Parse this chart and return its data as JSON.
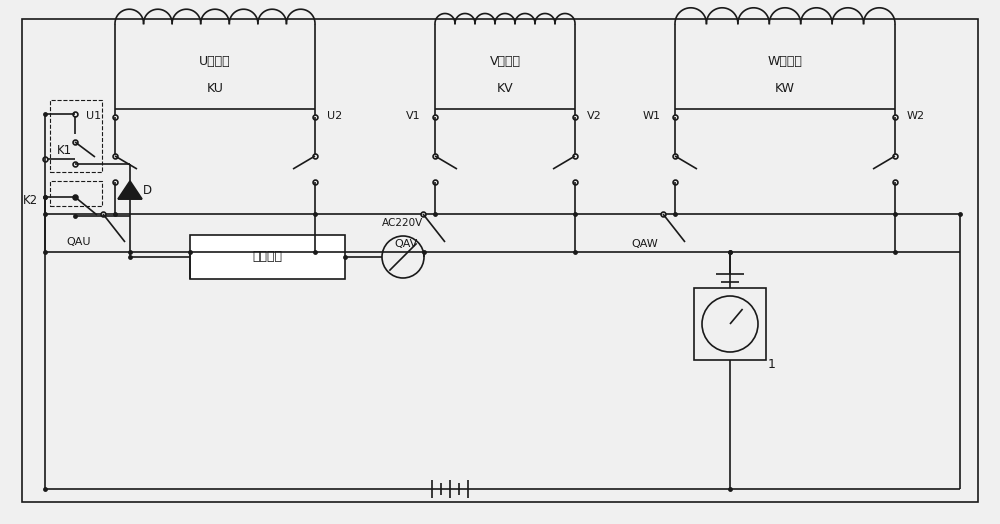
{
  "bg_color": "#f0f0f0",
  "line_color": "#1a1a1a",
  "line_width": 1.2,
  "fig_width": 10.0,
  "fig_height": 5.24,
  "coil_labels": [
    "U相绕组",
    "V相绕组",
    "W相绕组"
  ],
  "relay_labels": [
    "KU",
    "KV",
    "KW"
  ],
  "bus_labels": [
    "QAU",
    "QAV",
    "QAW"
  ],
  "module_label": "稳压模块",
  "ac_label": "AC220V",
  "k1_label": "K1",
  "k2_label": "K2",
  "diode_label": "D",
  "meter_label": "1"
}
